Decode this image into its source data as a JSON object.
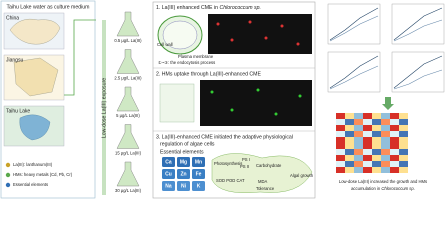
{
  "left": {
    "title": "Taihu Lake water as culture medium",
    "map_labels": [
      "China",
      "Jiangsu",
      "Taihu Lake"
    ],
    "legend": [
      "La(III): lanthanum(III)",
      "HMs: heavy metals (Cd, Pb, Cr)",
      "Essential elements"
    ]
  },
  "exposure": {
    "label": "Low-dose La(III) exposure",
    "doses": [
      "0.5 μg/L La(III)",
      "2.5 μg/L La(III)",
      "5 μg/L La(III)",
      "15 μg/L La(III)",
      "30 μg/L La(III)"
    ]
  },
  "step1": {
    "title": "1. La(III) enhanced CME in",
    "species": "Chlorococcum sp.",
    "cell_labels": [
      "Cell wall",
      "Plasma membrane"
    ],
    "note": "①~③: the endocytosis process"
  },
  "step2": {
    "title": "2. HMs uptake through La(III)-enhanced CME"
  },
  "step3": {
    "title": [
      "3. La(III)-enhanced CME initiated the adaptive physiological",
      "regulation of algae cells"
    ],
    "essential_title": "Essential elements",
    "elements": [
      [
        "Ca",
        "Mg",
        "Mn"
      ],
      [
        "Cu",
        "Zn",
        "Fe"
      ],
      [
        "Na",
        "Ni",
        "K"
      ]
    ],
    "pathway": {
      "photosynthesis": "Photosynthesis",
      "ps1": "PS I",
      "ps2": "PS II",
      "carbohydrate": "Carbohydrate",
      "growth": "Algal growth",
      "enzymes": "SOD POD CAT",
      "mda": "MDA",
      "tolerance": "Tolerance"
    }
  },
  "conclusion": {
    "text": [
      "Low-dose La(III) increased the growth and HMs",
      "accumulation in"
    ],
    "species": "Chlorococcum sp."
  }
}
